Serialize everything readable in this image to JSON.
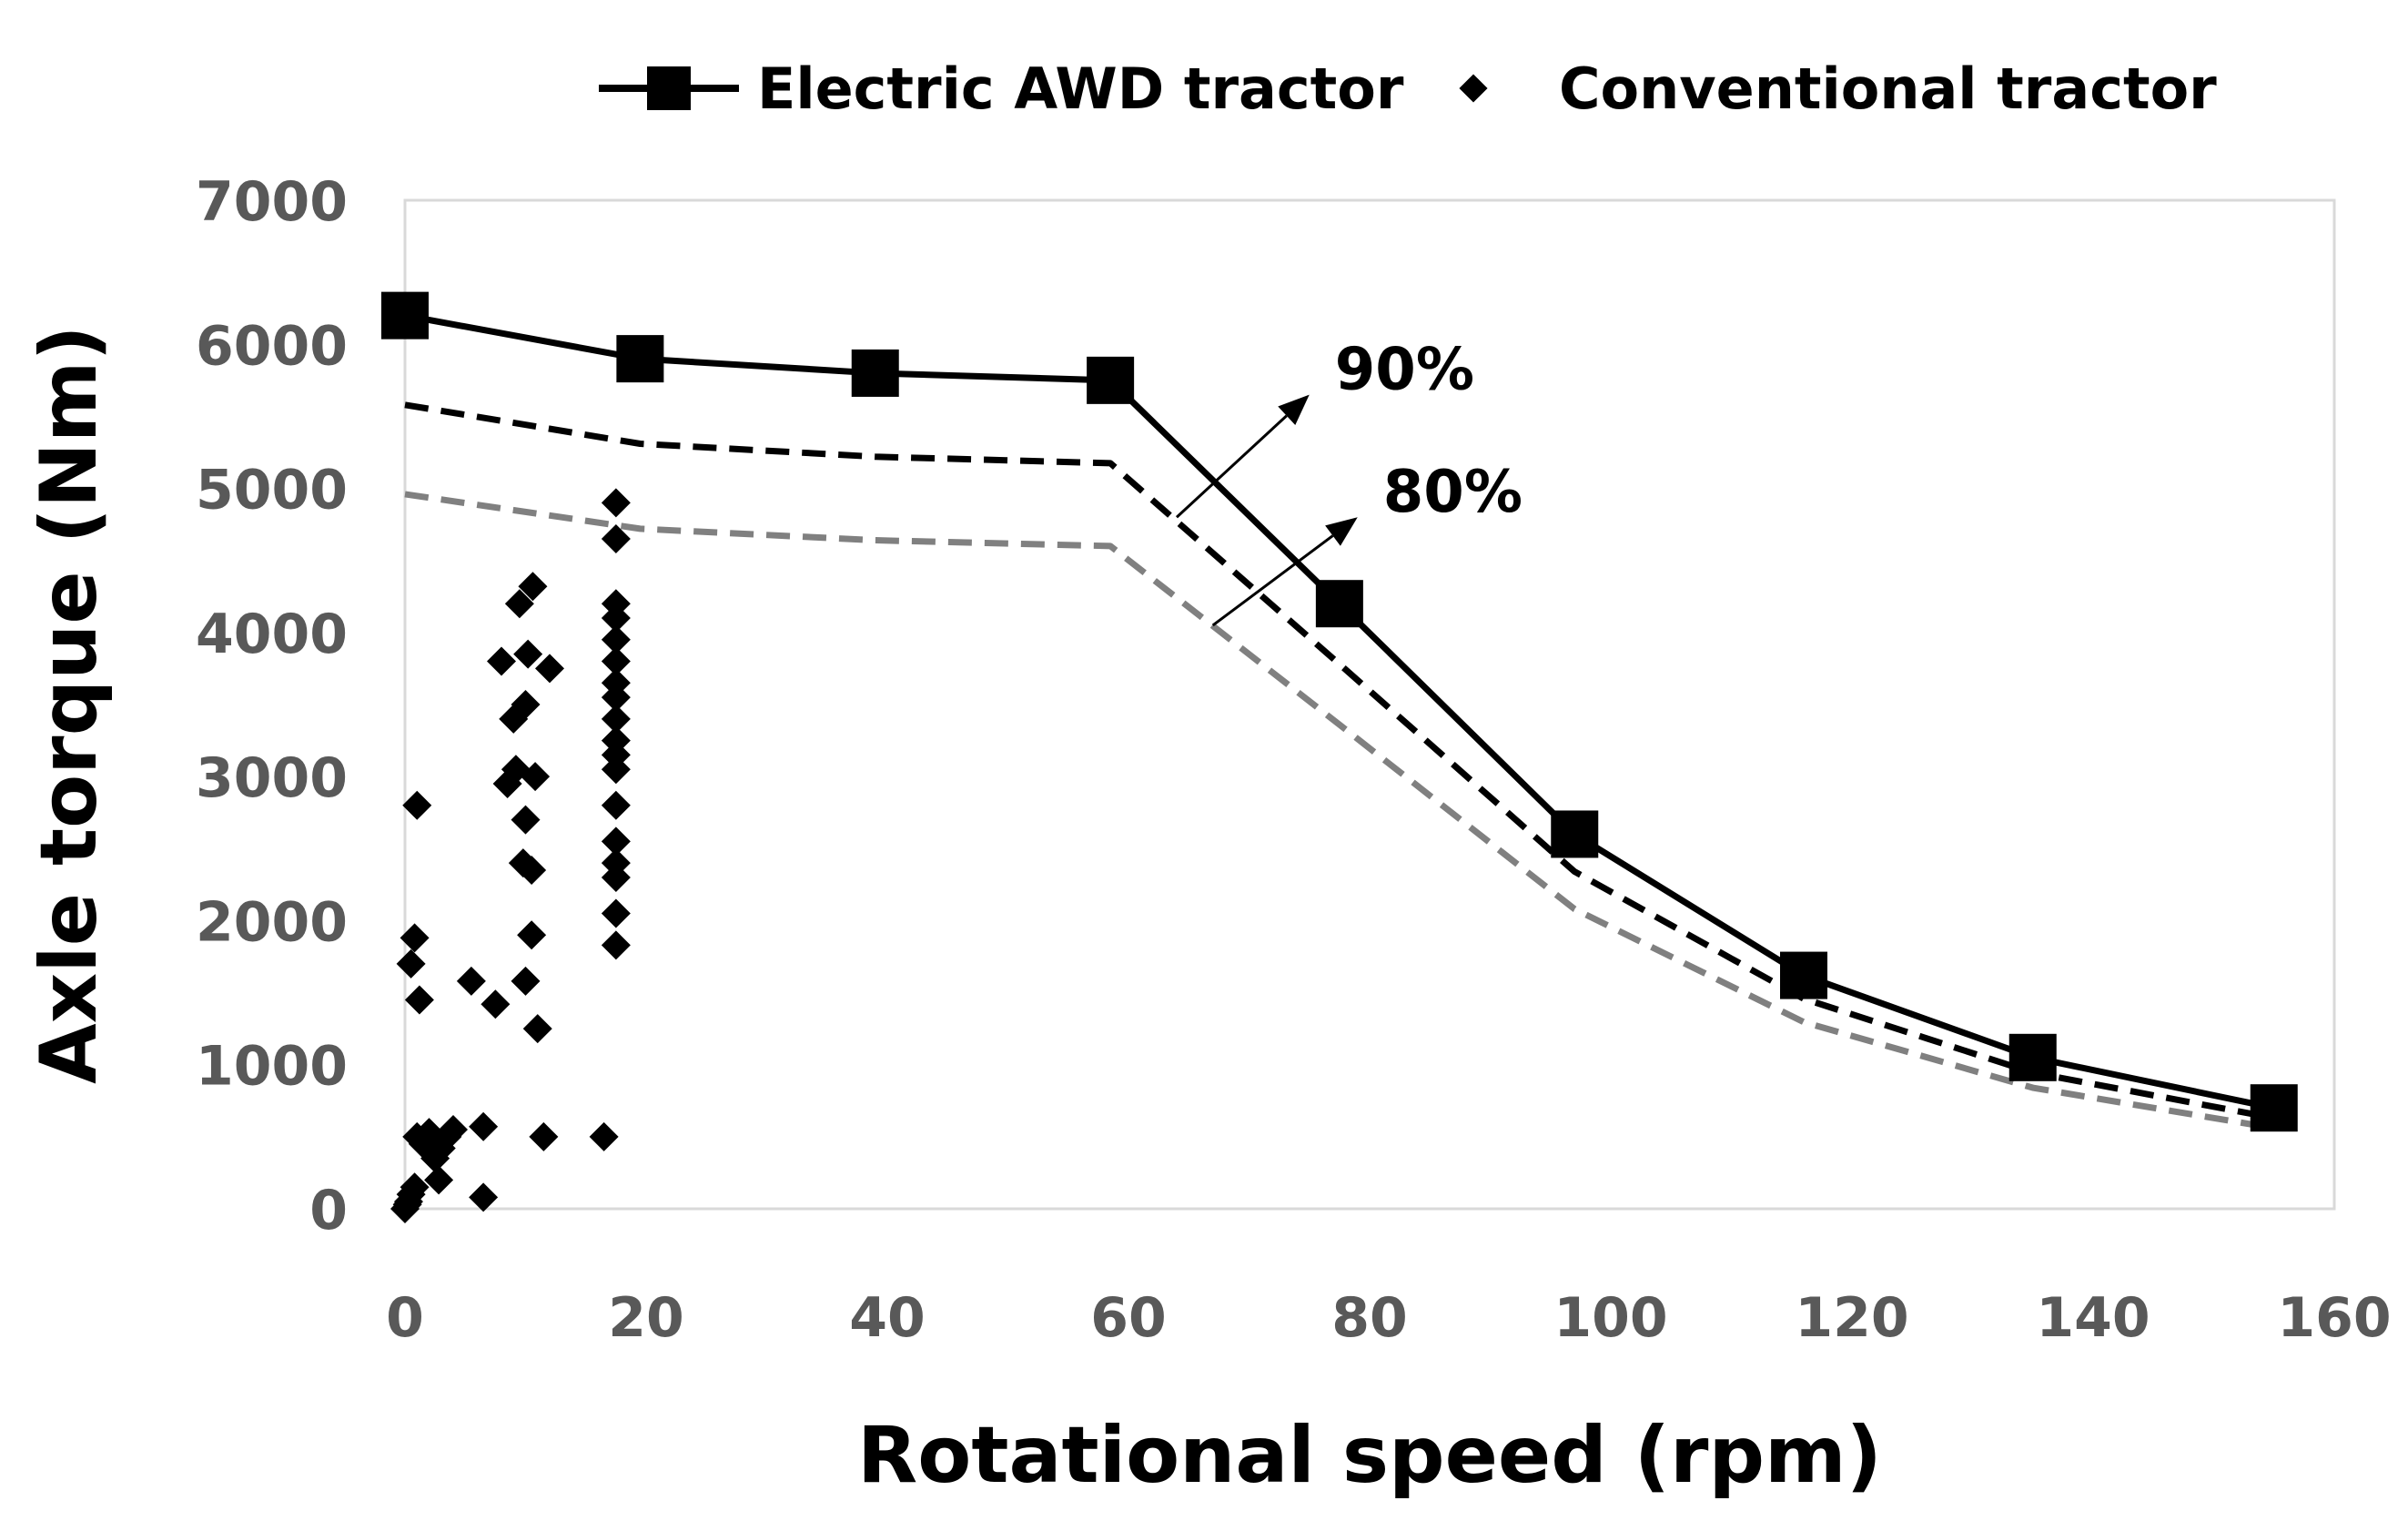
{
  "chart_data": {
    "type": "line",
    "title": "",
    "xlabel": "Rotational speed (rpm)",
    "ylabel": "Axle torque (Nm)",
    "xlim": [
      0,
      160
    ],
    "ylim": [
      0,
      7000
    ],
    "xticks": [
      0,
      20,
      40,
      60,
      80,
      100,
      120,
      140,
      160
    ],
    "yticks": [
      0,
      1000,
      2000,
      3000,
      4000,
      5000,
      6000,
      7000
    ],
    "grid": false,
    "legend_position": "top",
    "series": [
      {
        "name": "Electric AWD tractor",
        "style": "solid-line-square-markers",
        "color": "#000000",
        "x": [
          0,
          19.5,
          39,
          58.5,
          77.5,
          97,
          116,
          135,
          155
        ],
        "y": [
          6200,
          5900,
          5800,
          5750,
          4200,
          2600,
          1620,
          1050,
          700
        ]
      },
      {
        "name": "90%",
        "style": "dashed",
        "color": "#000000",
        "x": [
          0,
          19.5,
          39,
          58.5,
          77.5,
          97,
          116,
          135,
          155
        ],
        "y": [
          5580,
          5310,
          5220,
          5175,
          3780,
          2340,
          1458,
          945,
          630
        ]
      },
      {
        "name": "80%",
        "style": "dashed",
        "color": "#808080",
        "x": [
          0,
          19.5,
          39,
          58.5,
          77.5,
          97,
          116,
          135,
          155
        ],
        "y": [
          4960,
          4720,
          4640,
          4600,
          3360,
          2080,
          1296,
          840,
          560
        ]
      },
      {
        "name": "Conventional tractor",
        "style": "diamond-markers",
        "color": "#000000",
        "points": [
          [
            0,
            0
          ],
          [
            0.3,
            50
          ],
          [
            0.5,
            100
          ],
          [
            0.8,
            150
          ],
          [
            0.2,
            30
          ],
          [
            0.5,
            1700
          ],
          [
            0.8,
            1880
          ],
          [
            1,
            2800
          ],
          [
            1.2,
            1450
          ],
          [
            1,
            500
          ],
          [
            1.5,
            450
          ],
          [
            2,
            530
          ],
          [
            2.5,
            350
          ],
          [
            3,
            420
          ],
          [
            2.8,
            200
          ],
          [
            3.5,
            500
          ],
          [
            4,
            550
          ],
          [
            5.5,
            1580
          ],
          [
            6.5,
            80
          ],
          [
            6.5,
            570
          ],
          [
            7.5,
            1420
          ],
          [
            8,
            3800
          ],
          [
            8.5,
            2950
          ],
          [
            9,
            3400
          ],
          [
            9.2,
            3050
          ],
          [
            9.5,
            4200
          ],
          [
            9.8,
            2400
          ],
          [
            10,
            2700
          ],
          [
            10,
            3500
          ],
          [
            10.2,
            3850
          ],
          [
            10.5,
            2350
          ],
          [
            10.5,
            1900
          ],
          [
            10.6,
            4320
          ],
          [
            10,
            1580
          ],
          [
            10.8,
            3000
          ],
          [
            11,
            1250
          ],
          [
            11.5,
            500
          ],
          [
            12,
            3750
          ],
          [
            16.5,
            500
          ],
          [
            17.5,
            1830
          ],
          [
            17.5,
            2050
          ],
          [
            17.5,
            2300
          ],
          [
            17.5,
            2400
          ],
          [
            17.5,
            2550
          ],
          [
            17.5,
            2800
          ],
          [
            17.5,
            3050
          ],
          [
            17.5,
            3150
          ],
          [
            17.5,
            3250
          ],
          [
            17.5,
            3400
          ],
          [
            17.5,
            3550
          ],
          [
            17.5,
            3650
          ],
          [
            17.5,
            3800
          ],
          [
            17.5,
            3950
          ],
          [
            17.5,
            4100
          ],
          [
            17.5,
            4200
          ],
          [
            17.5,
            4650
          ],
          [
            17.5,
            4900
          ]
        ]
      }
    ],
    "annotations": [
      {
        "text": "90%",
        "arrow_from": [
          64,
          4800
        ],
        "arrow_to": [
          75,
          5650
        ]
      },
      {
        "text": "80%",
        "arrow_from": [
          67,
          4050
        ],
        "arrow_to": [
          79,
          4800
        ]
      }
    ]
  }
}
